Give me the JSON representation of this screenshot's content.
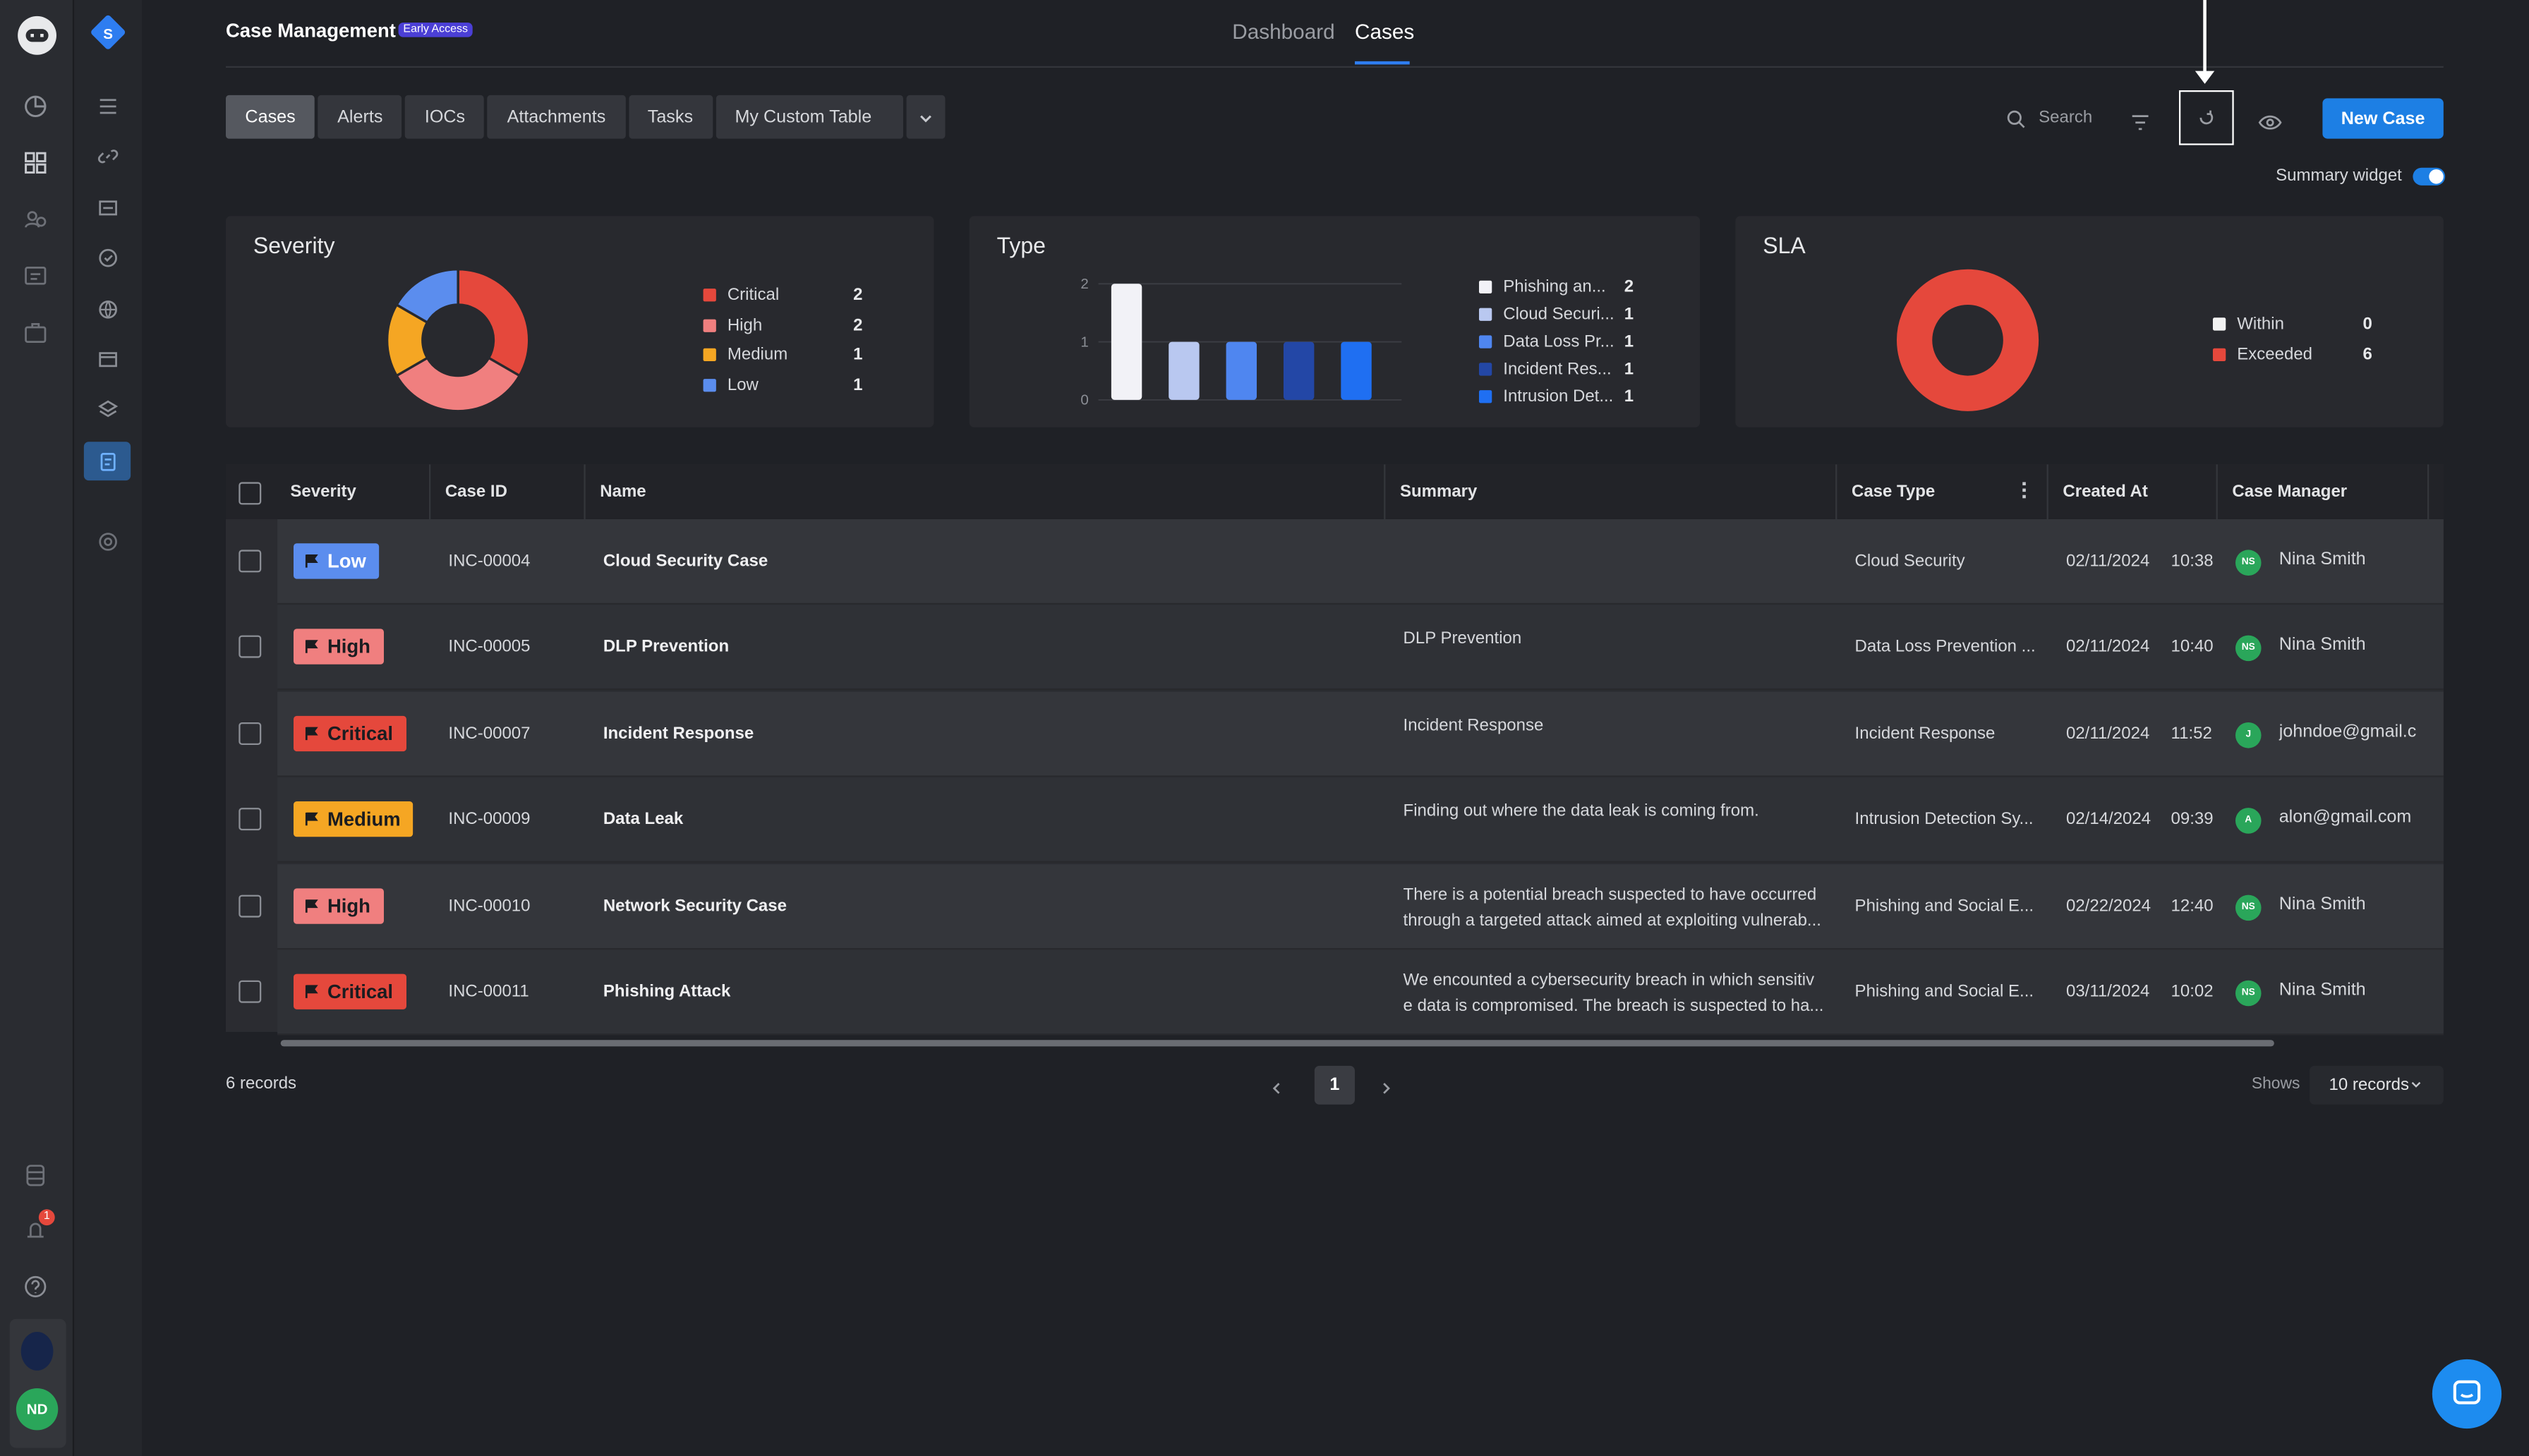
{
  "header": {
    "title": "Case Management",
    "badge": "Early Access",
    "tabs": [
      "Dashboard",
      "Cases"
    ],
    "active_tab": "Cases"
  },
  "tabbar": {
    "tabs": [
      "Cases",
      "Alerts",
      "IOCs",
      "Attachments",
      "Tasks",
      "My Custom Table"
    ],
    "active": "Cases"
  },
  "toolbar": {
    "search_label": "Search",
    "new_case_label": "New Case",
    "summary_widget_label": "Summary widget",
    "summary_widget_on": true
  },
  "sidebar": {
    "workspace_letter": "S",
    "notification_count": "1",
    "user_initials": "ND"
  },
  "widgets": {
    "severity": {
      "title": "Severity",
      "legend": [
        {
          "label": "Critical",
          "count": "2",
          "color": "#e5483c"
        },
        {
          "label": "High",
          "count": "2",
          "color": "#f07f7f"
        },
        {
          "label": "Medium",
          "count": "1",
          "color": "#f5a623"
        },
        {
          "label": "Low",
          "count": "1",
          "color": "#5b8dee"
        }
      ]
    },
    "type": {
      "title": "Type",
      "legend": [
        {
          "label": "Phishing an...",
          "count": "2",
          "color": "#f2f2f7"
        },
        {
          "label": "Cloud Securi...",
          "count": "1",
          "color": "#b9c8f0"
        },
        {
          "label": "Data Loss Pr...",
          "count": "1",
          "color": "#4f86f0"
        },
        {
          "label": "Incident Res...",
          "count": "1",
          "color": "#2347a6"
        },
        {
          "label": "Intrusion Det...",
          "count": "1",
          "color": "#1f6ff2"
        }
      ]
    },
    "sla": {
      "title": "SLA",
      "legend": [
        {
          "label": "Within",
          "count": "0",
          "color": "#f2f2f2"
        },
        {
          "label": "Exceeded",
          "count": "6",
          "color": "#e5483c"
        }
      ]
    }
  },
  "chart_data": [
    {
      "type": "pie",
      "title": "Severity",
      "categories": [
        "Critical",
        "High",
        "Medium",
        "Low"
      ],
      "values": [
        2,
        2,
        1,
        1
      ]
    },
    {
      "type": "bar",
      "title": "Type",
      "categories": [
        "Phishing an...",
        "Cloud Securi...",
        "Data Loss Pr...",
        "Incident Res...",
        "Intrusion Det..."
      ],
      "values": [
        2,
        1,
        1,
        1,
        1
      ],
      "ylim": [
        0,
        2
      ],
      "yticks": [
        "0",
        "1",
        "2"
      ]
    },
    {
      "type": "pie",
      "title": "SLA",
      "categories": [
        "Within",
        "Exceeded"
      ],
      "values": [
        0,
        6
      ]
    }
  ],
  "table": {
    "columns": [
      "Severity",
      "Case ID",
      "Name",
      "Summary",
      "Case Type",
      "Created At",
      "Case Manager"
    ],
    "rows": [
      {
        "severity": "Low",
        "id": "INC-00004",
        "name": "Cloud Security Case",
        "summary1": "",
        "summary2": "",
        "type": "Cloud Security",
        "date": "02/11/2024",
        "time": "10:38",
        "initials": "NS",
        "manager": "Nina Smith"
      },
      {
        "severity": "High",
        "id": "INC-00005",
        "name": "DLP Prevention",
        "summary1": "DLP Prevention",
        "summary2": "",
        "type": "Data Loss Prevention ...",
        "date": "02/11/2024",
        "time": "10:40",
        "initials": "NS",
        "manager": "Nina Smith"
      },
      {
        "severity": "Critical",
        "id": "INC-00007",
        "name": "Incident Response",
        "summary1": "Incident Response",
        "summary2": "",
        "type": "Incident Response",
        "date": "02/11/2024",
        "time": "11:52",
        "initials": "J",
        "manager": "johndoe@gmail.c"
      },
      {
        "severity": "Medium",
        "id": "INC-00009",
        "name": "Data Leak",
        "summary1": "Finding out where the data leak is coming from.",
        "summary2": "",
        "type": "Intrusion Detection Sy...",
        "date": "02/14/2024",
        "time": "09:39",
        "initials": "A",
        "manager": "alon@gmail.com"
      },
      {
        "severity": "High",
        "id": "INC-00010",
        "name": "Network Security Case",
        "summary1": "There is a potential breach suspected to have occurred",
        "summary2": "through a targeted attack aimed at exploiting vulnerab...",
        "type": "Phishing and Social E...",
        "date": "02/22/2024",
        "time": "12:40",
        "initials": "NS",
        "manager": "Nina Smith"
      },
      {
        "severity": "Critical",
        "id": "INC-00011",
        "name": "Phishing Attack",
        "summary1": "We encounted a cybersecurity breach in which sensitiv",
        "summary2": "e data is compromised. The breach is suspected to ha...",
        "type": "Phishing and Social E...",
        "date": "03/11/2024",
        "time": "10:02",
        "initials": "NS",
        "manager": "Nina Smith"
      }
    ]
  },
  "severity_colors": {
    "Low": "#5b8dee",
    "High": "#f07f7f",
    "Critical": "#e5483c",
    "Medium": "#f5a623"
  },
  "footer": {
    "records": "6 records",
    "page": "1",
    "shows_label": "Shows",
    "page_size": "10 records"
  }
}
